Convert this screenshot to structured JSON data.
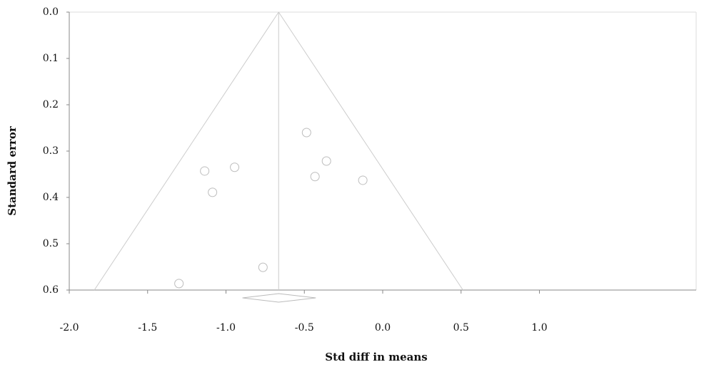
{
  "chart_data": {
    "type": "funnel",
    "x_label": "Std diff in means",
    "y_label": "Standard error",
    "xlim": [
      -2,
      2
    ],
    "xticks": [
      {
        "value": -2,
        "label": "-2.0"
      },
      -1.5,
      {
        "value": -1,
        "label": "-1.0"
      },
      -0.5,
      {
        "value": 0,
        "label": "0.0"
      },
      0.5,
      {
        "value": 1,
        "label": "1.0"
      }
    ],
    "ylim": [
      0,
      0.6
    ],
    "yticks": [
      {
        "value": 0,
        "label": "0.0"
      },
      0.1,
      0.2,
      0.3,
      0.4,
      0.5,
      0.6
    ],
    "y_inverted": true,
    "x": [
      -0.486,
      -0.359,
      -0.432,
      -0.127,
      -0.945,
      -1.136,
      -1.086,
      -0.764,
      -1.3
    ],
    "values": [
      0.26,
      0.3215,
      0.355,
      0.363,
      0.335,
      0.343,
      0.389,
      0.551,
      0.586
    ],
    "summary": {
      "estimate": -0.664,
      "ci": [
        -0.895,
        -0.427
      ]
    },
    "funnel_base": [
      -1.84,
      0.512
    ],
    "color": "#bdbdbd"
  }
}
